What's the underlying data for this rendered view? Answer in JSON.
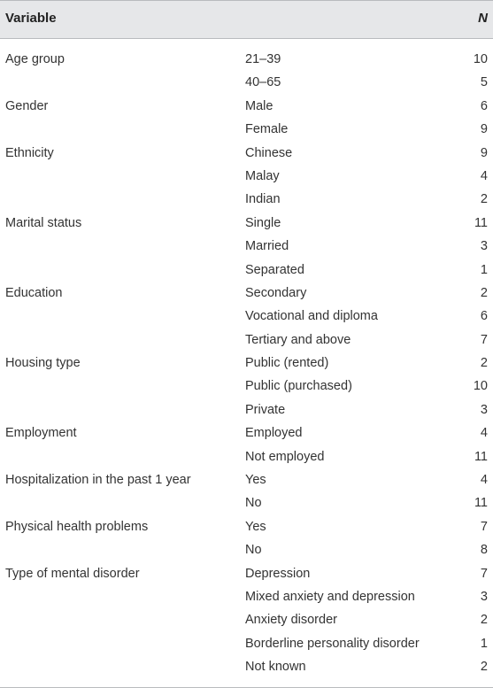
{
  "header": {
    "variable": "Variable",
    "n": "N"
  },
  "rows": [
    {
      "variable": "Age group",
      "category": "21–39",
      "n": "10"
    },
    {
      "variable": "",
      "category": "40–65",
      "n": "5"
    },
    {
      "variable": "Gender",
      "category": "Male",
      "n": "6"
    },
    {
      "variable": "",
      "category": "Female",
      "n": "9"
    },
    {
      "variable": "Ethnicity",
      "category": "Chinese",
      "n": "9"
    },
    {
      "variable": "",
      "category": "Malay",
      "n": "4"
    },
    {
      "variable": "",
      "category": "Indian",
      "n": "2"
    },
    {
      "variable": "Marital status",
      "category": "Single",
      "n": "11"
    },
    {
      "variable": "",
      "category": "Married",
      "n": "3"
    },
    {
      "variable": "",
      "category": "Separated",
      "n": "1"
    },
    {
      "variable": "Education",
      "category": "Secondary",
      "n": "2"
    },
    {
      "variable": "",
      "category": "Vocational and diploma",
      "n": "6"
    },
    {
      "variable": "",
      "category": "Tertiary and above",
      "n": "7"
    },
    {
      "variable": "Housing type",
      "category": "Public (rented)",
      "n": "2"
    },
    {
      "variable": "",
      "category": "Public (purchased)",
      "n": "10"
    },
    {
      "variable": "",
      "category": "Private",
      "n": "3"
    },
    {
      "variable": "Employment",
      "category": "Employed",
      "n": "4"
    },
    {
      "variable": "",
      "category": "Not employed",
      "n": "11"
    },
    {
      "variable": "Hospitalization in the past 1 year",
      "category": "Yes",
      "n": "4"
    },
    {
      "variable": "",
      "category": "No",
      "n": "11"
    },
    {
      "variable": "Physical health problems",
      "category": "Yes",
      "n": "7"
    },
    {
      "variable": "",
      "category": "No",
      "n": "8"
    },
    {
      "variable": "Type of mental disorder",
      "category": "Depression",
      "n": "7"
    },
    {
      "variable": "",
      "category": "Mixed anxiety and depression",
      "n": "3"
    },
    {
      "variable": "",
      "category": "Anxiety disorder",
      "n": "2"
    },
    {
      "variable": "",
      "category": "Borderline personality disorder",
      "n": "1"
    },
    {
      "variable": "",
      "category": "Not known",
      "n": "2"
    }
  ]
}
